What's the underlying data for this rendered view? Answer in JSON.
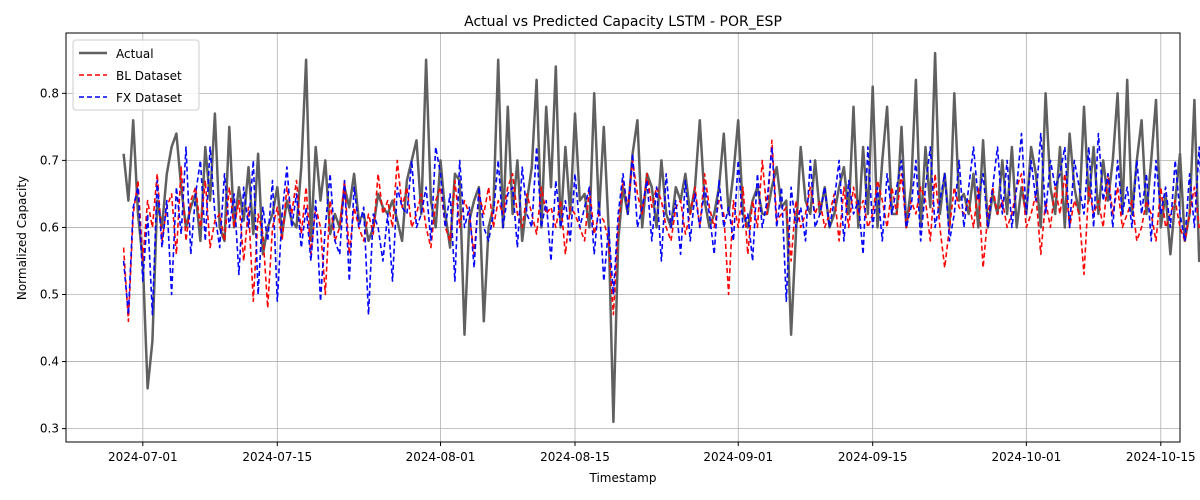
{
  "chart_data": {
    "type": "line",
    "title": "Actual vs Predicted Capacity LSTM - POR_ESP",
    "xlabel": "Timestamp",
    "ylabel": "Normalized Capacity",
    "xlim": [
      "2024-06-23",
      "2024-10-17"
    ],
    "ylim": [
      0.28,
      0.89
    ],
    "x_ticks": [
      "2024-07-01",
      "2024-07-15",
      "2024-08-01",
      "2024-08-15",
      "2024-09-01",
      "2024-09-15",
      "2024-10-01",
      "2024-10-15"
    ],
    "y_ticks": [
      0.3,
      0.4,
      0.5,
      0.6,
      0.7,
      0.8
    ],
    "grid": true,
    "legend_position": "top-left",
    "x_range": [
      "2024-06-29",
      "2024-10-13"
    ],
    "x_step": "12h",
    "series": [
      {
        "name": "Actual",
        "color": "#606060",
        "style": "solid",
        "values": [
          0.71,
          0.64,
          0.76,
          0.62,
          0.55,
          0.36,
          0.43,
          0.64,
          0.6,
          0.68,
          0.72,
          0.74,
          0.66,
          0.6,
          0.63,
          0.65,
          0.58,
          0.72,
          0.64,
          0.77,
          0.6,
          0.58,
          0.75,
          0.6,
          0.66,
          0.61,
          0.69,
          0.59,
          0.71,
          0.56,
          0.6,
          0.62,
          0.66,
          0.59,
          0.64,
          0.61,
          0.6,
          0.69,
          0.85,
          0.58,
          0.72,
          0.64,
          0.7,
          0.59,
          0.62,
          0.6,
          0.66,
          0.63,
          0.68,
          0.61,
          0.62,
          0.58,
          0.6,
          0.65,
          0.63,
          0.62,
          0.64,
          0.61,
          0.58,
          0.67,
          0.7,
          0.73,
          0.62,
          0.85,
          0.64,
          0.6,
          0.7,
          0.62,
          0.57,
          0.68,
          0.67,
          0.44,
          0.61,
          0.64,
          0.66,
          0.46,
          0.6,
          0.63,
          0.85,
          0.6,
          0.78,
          0.62,
          0.7,
          0.58,
          0.64,
          0.69,
          0.82,
          0.6,
          0.78,
          0.66,
          0.84,
          0.6,
          0.72,
          0.62,
          0.77,
          0.64,
          0.65,
          0.6,
          0.8,
          0.62,
          0.75,
          0.6,
          0.31,
          0.58,
          0.66,
          0.62,
          0.71,
          0.76,
          0.6,
          0.68,
          0.66,
          0.6,
          0.7,
          0.62,
          0.6,
          0.66,
          0.64,
          0.68,
          0.62,
          0.66,
          0.76,
          0.64,
          0.6,
          0.62,
          0.66,
          0.74,
          0.62,
          0.68,
          0.76,
          0.62,
          0.6,
          0.64,
          0.66,
          0.62,
          0.62,
          0.66,
          0.69,
          0.63,
          0.64,
          0.44,
          0.59,
          0.72,
          0.64,
          0.62,
          0.7,
          0.62,
          0.66,
          0.6,
          0.62,
          0.66,
          0.69,
          0.62,
          0.78,
          0.6,
          0.72,
          0.62,
          0.81,
          0.6,
          0.7,
          0.78,
          0.62,
          0.62,
          0.75,
          0.6,
          0.66,
          0.82,
          0.6,
          0.72,
          0.63,
          0.86,
          0.62,
          0.68,
          0.6,
          0.8,
          0.64,
          0.65,
          0.62,
          0.68,
          0.6,
          0.73,
          0.6,
          0.65,
          0.62,
          0.7,
          0.62,
          0.72,
          0.6,
          0.66,
          0.62,
          0.72,
          0.68,
          0.6,
          0.8,
          0.66,
          0.62,
          0.72,
          0.6,
          0.74,
          0.66,
          0.62,
          0.78,
          0.64,
          0.72,
          0.62,
          0.7,
          0.64,
          0.7,
          0.8,
          0.62,
          0.82,
          0.62,
          0.7,
          0.76,
          0.62,
          0.7,
          0.79,
          0.6,
          0.65,
          0.56,
          0.64,
          0.71,
          0.58,
          0.62,
          0.79,
          0.55,
          0.62,
          0.68,
          0.55,
          0.71,
          0.66,
          0.62,
          0.53,
          0.6,
          0.7,
          0.62,
          0.56,
          0.7,
          0.64,
          0.6,
          0.61,
          0.55,
          0.67,
          0.69,
          0.6,
          0.56,
          0.62,
          0.66,
          0.55,
          0.63,
          0.62,
          0.58,
          0.66,
          0.72,
          0.55,
          0.58,
          0.65,
          0.56,
          0.64,
          0.71,
          0.62,
          0.6,
          0.66,
          0.55,
          0.81,
          0.6,
          0.51,
          0.56,
          0.8,
          0.6,
          0.72,
          0.58,
          0.83,
          0.7,
          0.49,
          0.72,
          0.66,
          0.85,
          0.62,
          0.62,
          0.62
        ]
      },
      {
        "name": "BL Dataset",
        "color": "#ff0000",
        "style": "dashed",
        "values": [
          0.57,
          0.46,
          0.62,
          0.67,
          0.55,
          0.64,
          0.6,
          0.68,
          0.58,
          0.63,
          0.65,
          0.56,
          0.69,
          0.58,
          0.64,
          0.66,
          0.6,
          0.67,
          0.57,
          0.61,
          0.62,
          0.58,
          0.66,
          0.6,
          0.64,
          0.55,
          0.63,
          0.49,
          0.62,
          0.59,
          0.48,
          0.6,
          0.63,
          0.58,
          0.66,
          0.62,
          0.67,
          0.59,
          0.66,
          0.56,
          0.63,
          0.6,
          0.5,
          0.64,
          0.58,
          0.6,
          0.67,
          0.56,
          0.63,
          0.6,
          0.58,
          0.62,
          0.59,
          0.68,
          0.62,
          0.64,
          0.6,
          0.7,
          0.63,
          0.66,
          0.6,
          0.62,
          0.65,
          0.6,
          0.57,
          0.64,
          0.66,
          0.6,
          0.58,
          0.67,
          0.6,
          0.64,
          0.62,
          0.56,
          0.65,
          0.62,
          0.66,
          0.6,
          0.64,
          0.62,
          0.66,
          0.68,
          0.62,
          0.6,
          0.65,
          0.62,
          0.59,
          0.66,
          0.62,
          0.63,
          0.6,
          0.64,
          0.56,
          0.63,
          0.62,
          0.6,
          0.58,
          0.66,
          0.59,
          0.62,
          0.61,
          0.58,
          0.47,
          0.6,
          0.67,
          0.63,
          0.7,
          0.65,
          0.62,
          0.68,
          0.63,
          0.66,
          0.64,
          0.6,
          0.58,
          0.63,
          0.64,
          0.59,
          0.62,
          0.66,
          0.6,
          0.68,
          0.63,
          0.6,
          0.64,
          0.62,
          0.5,
          0.64,
          0.6,
          0.66,
          0.56,
          0.64,
          0.6,
          0.7,
          0.62,
          0.73,
          0.61,
          0.62,
          0.63,
          0.55,
          0.64,
          0.6,
          0.62,
          0.66,
          0.62,
          0.64,
          0.6,
          0.62,
          0.65,
          0.58,
          0.66,
          0.6,
          0.66,
          0.62,
          0.64,
          0.6,
          0.62,
          0.67,
          0.64,
          0.6,
          0.66,
          0.62,
          0.68,
          0.6,
          0.64,
          0.62,
          0.66,
          0.64,
          0.58,
          0.68,
          0.6,
          0.54,
          0.6,
          0.66,
          0.63,
          0.62,
          0.64,
          0.6,
          0.66,
          0.54,
          0.62,
          0.66,
          0.62,
          0.64,
          0.6,
          0.62,
          0.66,
          0.68,
          0.6,
          0.62,
          0.65,
          0.56,
          0.64,
          0.6,
          0.66,
          0.62,
          0.68,
          0.6,
          0.64,
          0.62,
          0.53,
          0.66,
          0.62,
          0.64,
          0.6,
          0.68,
          0.62,
          0.66,
          0.6,
          0.62,
          0.64,
          0.58,
          0.6,
          0.64,
          0.62,
          0.58,
          0.66,
          0.6,
          0.62,
          0.64,
          0.6,
          0.58,
          0.62,
          0.66,
          0.6,
          0.62,
          0.64,
          0.58,
          0.6,
          0.62,
          0.66,
          0.6,
          0.62,
          0.6,
          0.58,
          0.62,
          0.64,
          0.6,
          0.58,
          0.62,
          0.64,
          0.6,
          0.62,
          0.56,
          0.6,
          0.62,
          0.58,
          0.64,
          0.6,
          0.62,
          0.58,
          0.6,
          0.52,
          0.58,
          0.62,
          0.6,
          0.54,
          0.58,
          0.62,
          0.64,
          0.6,
          0.66,
          0.62,
          0.7,
          0.64,
          0.68,
          0.6,
          0.66,
          0.72,
          0.64,
          0.7,
          0.6,
          0.74,
          0.66,
          0.79,
          0.62,
          0.77,
          0.68,
          0.76
        ]
      },
      {
        "name": "FX Dataset",
        "color": "#0000ff",
        "style": "dashed",
        "values": [
          0.55,
          0.47,
          0.63,
          0.66,
          0.52,
          0.62,
          0.47,
          0.67,
          0.57,
          0.64,
          0.5,
          0.66,
          0.59,
          0.72,
          0.56,
          0.65,
          0.7,
          0.58,
          0.72,
          0.62,
          0.57,
          0.68,
          0.6,
          0.65,
          0.53,
          0.66,
          0.6,
          0.7,
          0.5,
          0.63,
          0.58,
          0.67,
          0.49,
          0.62,
          0.69,
          0.6,
          0.65,
          0.57,
          0.63,
          0.55,
          0.64,
          0.49,
          0.6,
          0.68,
          0.58,
          0.56,
          0.67,
          0.52,
          0.66,
          0.6,
          0.63,
          0.47,
          0.62,
          0.6,
          0.55,
          0.62,
          0.52,
          0.66,
          0.63,
          0.62,
          0.7,
          0.6,
          0.62,
          0.66,
          0.58,
          0.72,
          0.68,
          0.6,
          0.65,
          0.52,
          0.7,
          0.6,
          0.63,
          0.54,
          0.66,
          0.6,
          0.58,
          0.62,
          0.7,
          0.6,
          0.65,
          0.66,
          0.57,
          0.69,
          0.62,
          0.6,
          0.72,
          0.6,
          0.64,
          0.55,
          0.67,
          0.6,
          0.64,
          0.58,
          0.68,
          0.6,
          0.63,
          0.66,
          0.56,
          0.64,
          0.52,
          0.6,
          0.5,
          0.62,
          0.68,
          0.62,
          0.71,
          0.6,
          0.63,
          0.67,
          0.58,
          0.66,
          0.55,
          0.68,
          0.6,
          0.64,
          0.56,
          0.67,
          0.58,
          0.65,
          0.6,
          0.66,
          0.62,
          0.56,
          0.67,
          0.6,
          0.63,
          0.58,
          0.7,
          0.6,
          0.62,
          0.55,
          0.68,
          0.6,
          0.64,
          0.72,
          0.6,
          0.66,
          0.49,
          0.66,
          0.6,
          0.63,
          0.58,
          0.7,
          0.6,
          0.62,
          0.66,
          0.6,
          0.64,
          0.7,
          0.58,
          0.67,
          0.62,
          0.64,
          0.56,
          0.72,
          0.6,
          0.66,
          0.58,
          0.68,
          0.62,
          0.66,
          0.7,
          0.6,
          0.63,
          0.7,
          0.58,
          0.66,
          0.72,
          0.6,
          0.64,
          0.68,
          0.58,
          0.62,
          0.7,
          0.6,
          0.66,
          0.72,
          0.64,
          0.68,
          0.6,
          0.66,
          0.72,
          0.62,
          0.7,
          0.6,
          0.66,
          0.74,
          0.62,
          0.7,
          0.64,
          0.74,
          0.62,
          0.7,
          0.66,
          0.68,
          0.72,
          0.6,
          0.7,
          0.66,
          0.62,
          0.72,
          0.6,
          0.74,
          0.64,
          0.68,
          0.6,
          0.7,
          0.62,
          0.66,
          0.6,
          0.7,
          0.62,
          0.68,
          0.58,
          0.7,
          0.62,
          0.66,
          0.6,
          0.7,
          0.62,
          0.58,
          0.68,
          0.6,
          0.72,
          0.58,
          0.66,
          0.6,
          0.7,
          0.58,
          0.64,
          0.6,
          0.72,
          0.58,
          0.66,
          0.62,
          0.74,
          0.6,
          0.62,
          0.58,
          0.7,
          0.6,
          0.64,
          0.58,
          0.72,
          0.6,
          0.66,
          0.6,
          0.72,
          0.62,
          0.68,
          0.64,
          0.76,
          0.6,
          0.7,
          0.66,
          0.78,
          0.62,
          0.7,
          0.66,
          0.76,
          0.58,
          0.6,
          0.7,
          0.62,
          0.74,
          0.79,
          0.66,
          0.76,
          0.72,
          0.64,
          0.74,
          0.58
        ]
      }
    ]
  }
}
